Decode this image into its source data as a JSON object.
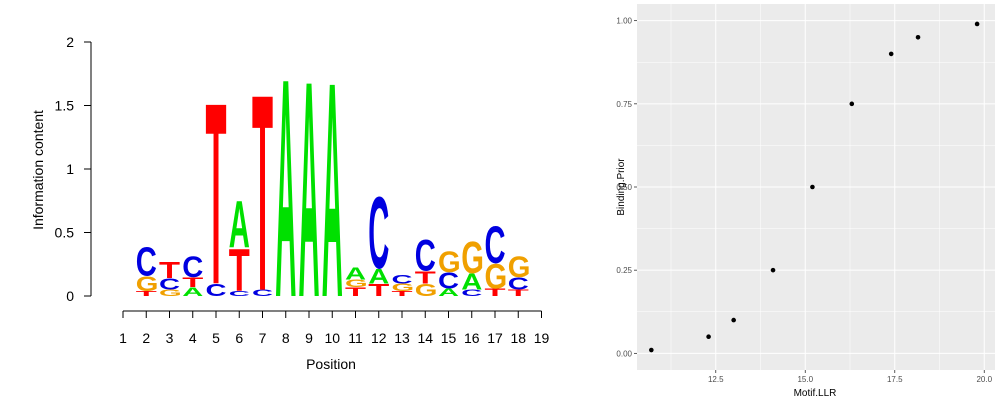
{
  "colors": {
    "A": "#00e000",
    "C": "#0000e0",
    "G": "#f0a000",
    "T": "#ff0000",
    "panel_bg": "#ebebeb",
    "grid": "#ffffff",
    "point": "#000000"
  },
  "chart_data": [
    {
      "type": "sequence-logo",
      "xlabel": "Position",
      "ylabel": "Information content",
      "ylim": [
        0,
        2
      ],
      "y_ticks": [
        "0",
        "0.5",
        "1",
        "1.5",
        "2"
      ],
      "x_ticks": [
        "1",
        "2",
        "3",
        "4",
        "5",
        "6",
        "7",
        "8",
        "9",
        "10",
        "11",
        "12",
        "13",
        "14",
        "15",
        "16",
        "17",
        "18",
        "19"
      ],
      "positions": [
        {
          "pos": 1,
          "letters": []
        },
        {
          "pos": 2,
          "letters": [
            {
              "l": "T",
              "h": 0.04
            },
            {
              "l": "G",
              "h": 0.12
            },
            {
              "l": "C",
              "h": 0.23
            }
          ]
        },
        {
          "pos": 3,
          "letters": [
            {
              "l": "G",
              "h": 0.05
            },
            {
              "l": "C",
              "h": 0.09
            },
            {
              "l": "T",
              "h": 0.13
            }
          ]
        },
        {
          "pos": 4,
          "letters": [
            {
              "l": "A",
              "h": 0.07
            },
            {
              "l": "T",
              "h": 0.08
            },
            {
              "l": "C",
              "h": 0.17
            }
          ]
        },
        {
          "pos": 5,
          "letters": [
            {
              "l": "C",
              "h": 0.1
            },
            {
              "l": "T",
              "h": 1.47
            }
          ]
        },
        {
          "pos": 6,
          "letters": [
            {
              "l": "C",
              "h": 0.04
            },
            {
              "l": "T",
              "h": 0.34
            },
            {
              "l": "A",
              "h": 0.38
            }
          ]
        },
        {
          "pos": 7,
          "letters": [
            {
              "l": "C",
              "h": 0.05
            },
            {
              "l": "T",
              "h": 1.59
            }
          ]
        },
        {
          "pos": 8,
          "letters": [
            {
              "l": "A",
              "h": 1.77
            }
          ]
        },
        {
          "pos": 9,
          "letters": [
            {
              "l": "A",
              "h": 1.75
            }
          ]
        },
        {
          "pos": 10,
          "letters": [
            {
              "l": "A",
              "h": 1.74
            }
          ]
        },
        {
          "pos": 11,
          "letters": [
            {
              "l": "T",
              "h": 0.07
            },
            {
              "l": "G",
              "h": 0.06
            },
            {
              "l": "A",
              "h": 0.1
            }
          ]
        },
        {
          "pos": 12,
          "letters": [
            {
              "l": "T",
              "h": 0.1
            },
            {
              "l": "A",
              "h": 0.12
            },
            {
              "l": "C",
              "h": 0.58
            }
          ]
        },
        {
          "pos": 13,
          "letters": [
            {
              "l": "T",
              "h": 0.04
            },
            {
              "l": "G",
              "h": 0.06
            },
            {
              "l": "C",
              "h": 0.07
            }
          ]
        },
        {
          "pos": 14,
          "letters": [
            {
              "l": "G",
              "h": 0.1
            },
            {
              "l": "T",
              "h": 0.1
            },
            {
              "l": "C",
              "h": 0.25
            }
          ]
        },
        {
          "pos": 15,
          "letters": [
            {
              "l": "A",
              "h": 0.06
            },
            {
              "l": "C",
              "h": 0.13
            },
            {
              "l": "G",
              "h": 0.17
            }
          ]
        },
        {
          "pos": 16,
          "letters": [
            {
              "l": "C",
              "h": 0.05
            },
            {
              "l": "A",
              "h": 0.13
            },
            {
              "l": "G",
              "h": 0.26
            }
          ]
        },
        {
          "pos": 17,
          "letters": [
            {
              "l": "T",
              "h": 0.06
            },
            {
              "l": "G",
              "h": 0.2
            },
            {
              "l": "C",
              "h": 0.3
            }
          ]
        },
        {
          "pos": 18,
          "letters": [
            {
              "l": "T",
              "h": 0.05
            },
            {
              "l": "C",
              "h": 0.1
            },
            {
              "l": "G",
              "h": 0.17
            }
          ]
        },
        {
          "pos": 19,
          "letters": []
        }
      ]
    },
    {
      "type": "scatter",
      "xlabel": "Motif.LLR",
      "ylabel": "Binding.Prior",
      "xlim": [
        10.3,
        20.3
      ],
      "ylim": [
        -0.05,
        1.05
      ],
      "x_ticks": [
        12.5,
        15.0,
        17.5,
        20.0
      ],
      "x_tick_labels": [
        "12.5",
        "15.0",
        "17.5",
        "20.0"
      ],
      "y_ticks": [
        0.0,
        0.25,
        0.5,
        0.75,
        1.0
      ],
      "y_tick_labels": [
        "0.00",
        "0.25",
        "0.50",
        "0.75",
        "1.00"
      ],
      "grid": true,
      "points": [
        {
          "x": 10.7,
          "y": 0.01
        },
        {
          "x": 12.3,
          "y": 0.05
        },
        {
          "x": 13.0,
          "y": 0.1
        },
        {
          "x": 14.1,
          "y": 0.25
        },
        {
          "x": 15.2,
          "y": 0.5
        },
        {
          "x": 16.3,
          "y": 0.75
        },
        {
          "x": 17.4,
          "y": 0.9
        },
        {
          "x": 18.15,
          "y": 0.95
        },
        {
          "x": 19.8,
          "y": 0.99
        }
      ]
    }
  ]
}
